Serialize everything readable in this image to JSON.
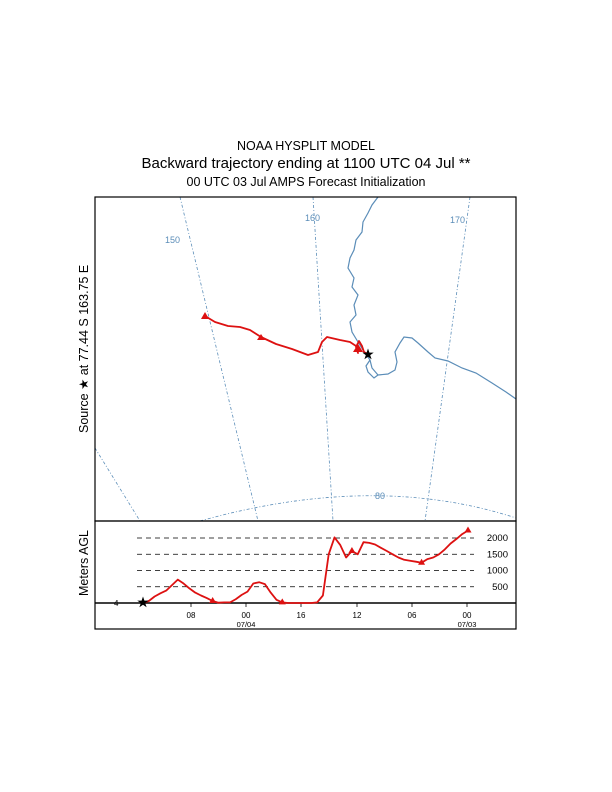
{
  "header": {
    "line1": "NOAA HYSPLIT MODEL",
    "line2": "Backward trajectory ending at 1100 UTC 04 Jul **",
    "line3": "00 UTC 03 Jul    AMPS  Forecast Initialization"
  },
  "chart_data": [
    {
      "type": "map",
      "ylabel": "Source  ★  at   77.44 S  163.75 E",
      "longitude_labels": [
        "150",
        "160",
        "170"
      ],
      "latitude_labels": [
        "80"
      ],
      "source": {
        "lat": -77.44,
        "lon": 163.75,
        "marker": "star"
      },
      "colors": {
        "trajectory": "#dd1111",
        "grid": "#5b8db8",
        "coast": "#5b8db8"
      }
    },
    {
      "type": "line",
      "ylabel": "Meters AGL",
      "y_ticks": [
        500,
        1000,
        1500,
        2000
      ],
      "ylim": [
        0,
        2300
      ],
      "time_ticks": [
        "08",
        "00",
        "16",
        "12",
        "06",
        "00"
      ],
      "date_labels": [
        "07/04",
        "07/03"
      ],
      "start_height_label": "4",
      "series": [
        {
          "color": "#dd1111",
          "hours_back": [
            0,
            1,
            2,
            3,
            4,
            5,
            6,
            7,
            8,
            9,
            10,
            11,
            12,
            13,
            14,
            15,
            16,
            17,
            18,
            19,
            20,
            21,
            22,
            23,
            24,
            25,
            26,
            27,
            28,
            29,
            30,
            31,
            32,
            33,
            34,
            35,
            36,
            37,
            38,
            39,
            40,
            41,
            42,
            43,
            44,
            45,
            46,
            47,
            48,
            49,
            50,
            51,
            52,
            53,
            54,
            55,
            56
          ],
          "values": [
            4,
            60,
            200,
            300,
            380,
            550,
            720,
            600,
            450,
            320,
            230,
            150,
            60,
            10,
            20,
            20,
            120,
            250,
            350,
            600,
            640,
            580,
            320,
            100,
            20,
            0,
            0,
            0,
            0,
            0,
            20,
            230,
            1500,
            2020,
            1780,
            1400,
            1600,
            1500,
            1870,
            1850,
            1800,
            1700,
            1600,
            1500,
            1400,
            1330,
            1300,
            1270,
            1240,
            1350,
            1400,
            1500,
            1650,
            1830,
            1970,
            2120,
            2230
          ]
        }
      ]
    }
  ]
}
